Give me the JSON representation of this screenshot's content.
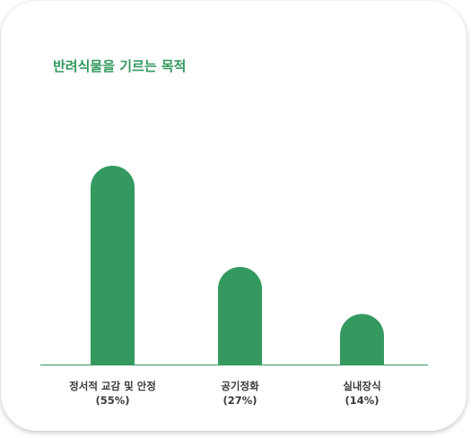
{
  "chart_data": {
    "type": "bar",
    "title": "반려식물을 기르는 목적",
    "categories": [
      {
        "name": "정서적 교감 및 안정",
        "pct_label": "(55%)"
      },
      {
        "name": "공기정화",
        "pct_label": "(27%)"
      },
      {
        "name": "실내장식",
        "pct_label": "(14%)"
      }
    ],
    "values": [
      55,
      27,
      14
    ],
    "ylim": [
      0,
      55
    ],
    "grid": false,
    "bar_color": "#33995f",
    "baseline_color": "#33995f"
  }
}
